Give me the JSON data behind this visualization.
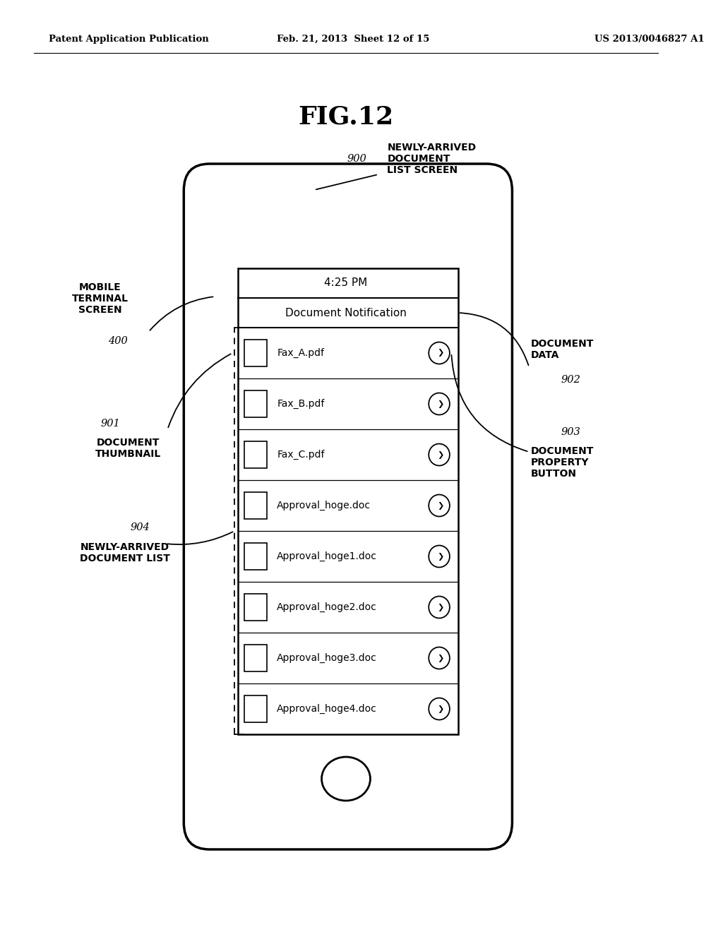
{
  "bg_color": "#ffffff",
  "header_left": "Patent Application Publication",
  "header_mid": "Feb. 21, 2013  Sheet 12 of 15",
  "header_right": "US 2013/0046827 A1",
  "fig_title": "FIG.12",
  "label_900": "900",
  "label_900_text": "NEWLY-ARRIVED\nDOCUMENT\nLIST SCREEN",
  "label_400": "400",
  "label_400_text": "MOBILE\nTERMINAL\nSCREEN",
  "label_901": "901",
  "label_901_text": "DOCUMENT\nTHUMBNAIL",
  "label_902": "902",
  "label_902_text": "DOCUMENT\nDATA",
  "label_903": "903",
  "label_903_text": "DOCUMENT\nPROPERTY\nBUTTON",
  "label_904": "904",
  "label_904_text": "NEWLY-ARRIVED\nDOCUMENT LIST",
  "time_text": "4:25 PM",
  "notification_text": "Document Notification",
  "documents": [
    "Fax_A.pdf",
    "Fax_B.pdf",
    "Fax_C.pdf",
    "Approval_hoge.doc",
    "Approval_hoge1.doc",
    "Approval_hoge2.doc",
    "Approval_hoge3.doc",
    "Approval_hoge4.doc"
  ]
}
